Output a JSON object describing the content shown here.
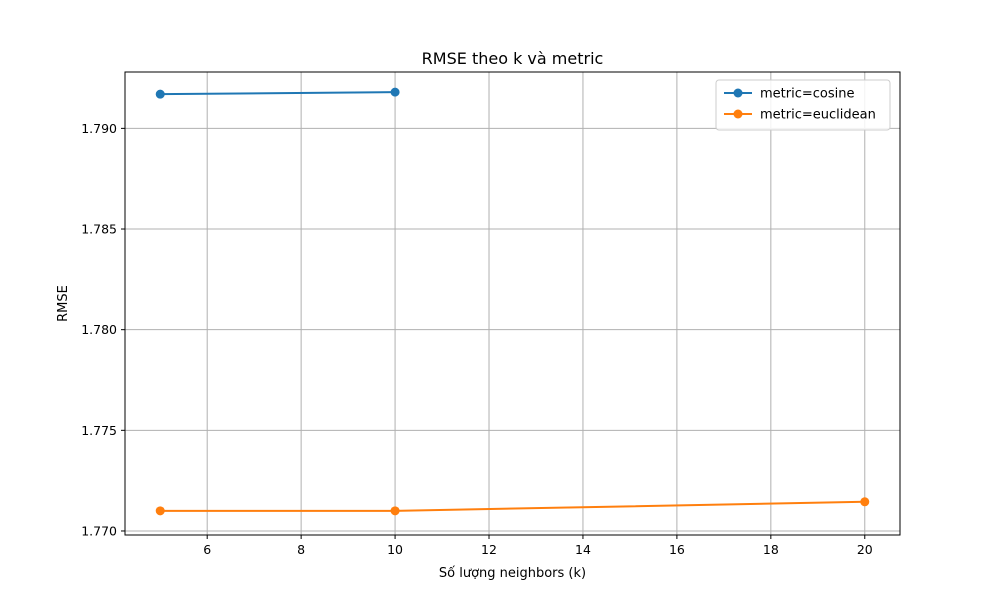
{
  "chart_data": {
    "type": "line",
    "title": "RMSE theo k và metric",
    "xlabel": "Số lượng neighbors (k)",
    "ylabel": "RMSE",
    "xlim": [
      4.25,
      20.75
    ],
    "ylim": [
      1.7698,
      1.7928
    ],
    "xticks": [
      6,
      8,
      10,
      12,
      14,
      16,
      18,
      20
    ],
    "yticks": [
      1.77,
      1.775,
      1.78,
      1.785,
      1.79
    ],
    "ytick_labels": [
      "1.770",
      "1.775",
      "1.780",
      "1.785",
      "1.790"
    ],
    "grid": true,
    "legend_position": "top-right",
    "series": [
      {
        "name": "metric=cosine",
        "color": "#1f77b4",
        "marker": "circle",
        "x": [
          5,
          10
        ],
        "y": [
          1.7917,
          1.7918
        ]
      },
      {
        "name": "metric=euclidean",
        "color": "#ff7f0e",
        "marker": "circle",
        "x": [
          5,
          10,
          20
        ],
        "y": [
          1.771,
          1.771,
          1.77145
        ]
      }
    ]
  }
}
